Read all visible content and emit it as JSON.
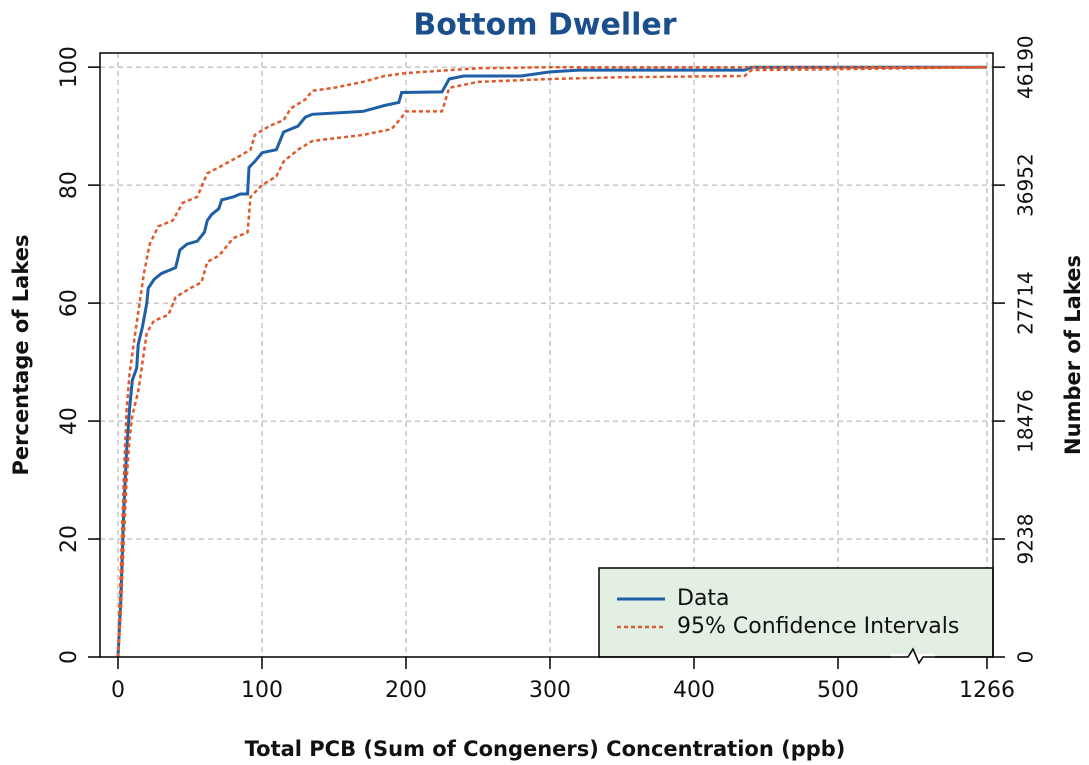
{
  "chart_data": {
    "type": "line",
    "title": "Bottom Dweller",
    "xlabel": "Total PCB (Sum of Congeners) Concentration (ppb)",
    "ylabel": "Percentage of Lakes",
    "y2label": "Number of Lakes",
    "xlim": [
      -12.5,
      1266
    ],
    "x_break": 550,
    "xticks": [
      0,
      100,
      200,
      300,
      400,
      500,
      1266
    ],
    "ylim": [
      0,
      102.4
    ],
    "yticks": [
      0,
      20,
      40,
      60,
      80,
      100
    ],
    "y2lim": [
      0,
      47298
    ],
    "y2ticks": [
      0,
      9238,
      18476,
      27714,
      36952,
      46190
    ],
    "grid": true,
    "legend": "bottom-right",
    "series": [
      {
        "name": "Data",
        "color": "#1f5fa6",
        "dash": false,
        "x": [
          0,
          2,
          4,
          6,
          8,
          10,
          13,
          14,
          17,
          20,
          21,
          25,
          30,
          40,
          43,
          48,
          55,
          60,
          62,
          65,
          70,
          72,
          80,
          85,
          90,
          91,
          95,
          100,
          110,
          115,
          125,
          130,
          135,
          170,
          185,
          195,
          197,
          225,
          230,
          240,
          280,
          300,
          320,
          435,
          440,
          1266
        ],
        "values": [
          0,
          10,
          25,
          35,
          42,
          47,
          49,
          53,
          56,
          60,
          62.5,
          64,
          65,
          66,
          69,
          70,
          70.5,
          72,
          74,
          75,
          76,
          77.5,
          78,
          78.5,
          78.5,
          83,
          84,
          85.5,
          86,
          89,
          90,
          91.5,
          92,
          92.5,
          93.5,
          94,
          95.7,
          95.8,
          98,
          98.5,
          98.5,
          99.2,
          99.5,
          99.5,
          100,
          100
        ]
      },
      {
        "name": "95% Confidence Intervals",
        "color": "#e0592a",
        "dash": true,
        "x": [
          0,
          2,
          4,
          6,
          8,
          12,
          18,
          22,
          28,
          38,
          45,
          55,
          62,
          70,
          85,
          92,
          95,
          105,
          115,
          120,
          130,
          135,
          150,
          170,
          185,
          200,
          230,
          250,
          300,
          1266
        ],
        "values": [
          0,
          15,
          30,
          42,
          48,
          55,
          65,
          70,
          73,
          74,
          77,
          78,
          82,
          83,
          85,
          86,
          88.5,
          90,
          91,
          93,
          94.5,
          96,
          96.5,
          97.5,
          98.5,
          99,
          99.5,
          99.8,
          100,
          100
        ]
      },
      {
        "color": "#e0592a",
        "dash": true,
        "x": [
          0,
          2,
          4,
          6,
          8,
          10,
          14,
          17,
          20,
          25,
          35,
          40,
          50,
          58,
          62,
          70,
          80,
          90,
          92,
          100,
          110,
          115,
          125,
          135,
          170,
          190,
          197,
          200,
          225,
          230,
          250,
          300,
          350,
          435,
          440,
          550,
          1266
        ],
        "values": [
          0,
          8,
          20,
          30,
          37,
          41,
          45,
          50,
          55,
          57,
          58,
          61,
          62.5,
          63.5,
          67,
          68,
          71,
          72,
          78,
          80,
          81.5,
          84,
          86,
          87.5,
          88.5,
          89.5,
          91.5,
          92.5,
          92.5,
          96.5,
          97.5,
          98,
          98.3,
          98.5,
          99.5,
          99.8,
          100
        ]
      }
    ]
  }
}
